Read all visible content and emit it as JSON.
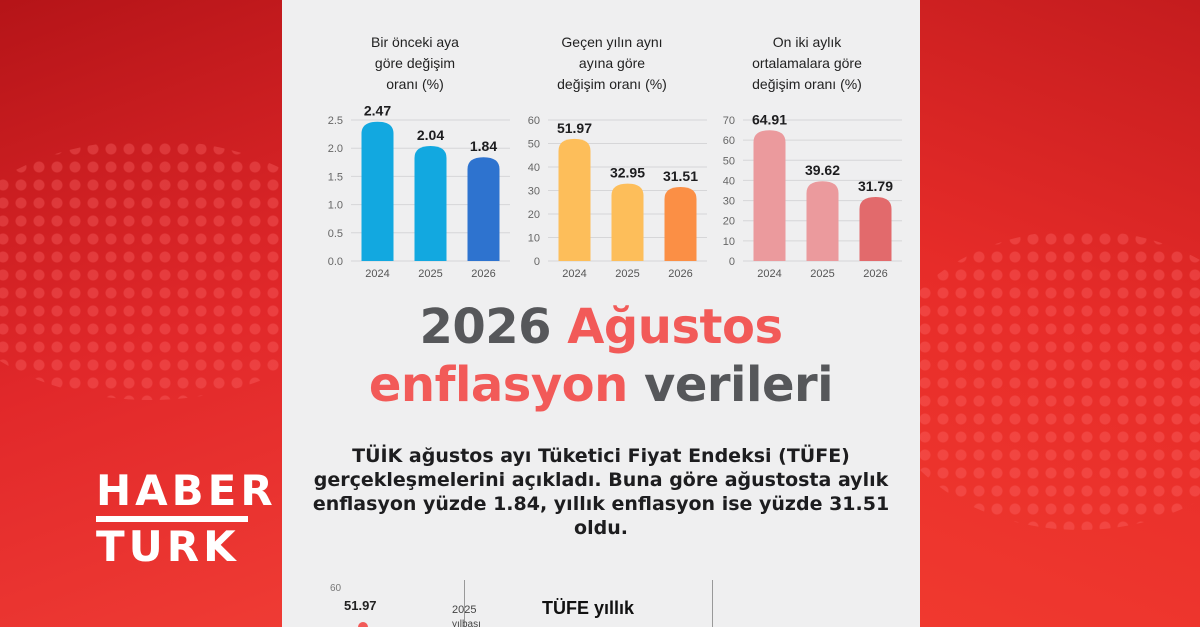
{
  "brand": {
    "line1": "HABER",
    "line2": "TURK"
  },
  "headline": {
    "part1": "2026",
    "part2": "Ağustos",
    "part3": "enflasyon",
    "part4": "verileri"
  },
  "description": "TÜİK ağustos ayı Tüketici Fiyat Endeksi (TÜFE) gerçekleşmelerini açıkladı. Buna göre ağustosta aylık enflasyon yüzde 1.84, yıllık enflasyon ise yüzde 31.51 oldu.",
  "bottom_chart": {
    "tick": "60",
    "value": "51.97",
    "year_label": "2025",
    "sub_label": "yılbaşı",
    "title": "TÜFE yıllık"
  },
  "colors": {
    "background_red": "#e02a26",
    "panel": "#efeff0",
    "headline_dark": "#56575a",
    "headline_red": "#f25a58"
  },
  "chart_data": [
    {
      "type": "bar",
      "title_lines": [
        "Bir önceki aya",
        "göre değişim",
        "oranı (%)"
      ],
      "categories": [
        "2024",
        "2025",
        "2026"
      ],
      "values": [
        2.47,
        2.04,
        1.84
      ],
      "labels": [
        "2.47",
        "2.04",
        "1.84"
      ],
      "yticks": [
        "0.0",
        "0.5",
        "1.0",
        "1.5",
        "2.0",
        "2.5"
      ],
      "ylim": [
        0,
        2.5
      ],
      "colors": [
        "#12a8e0",
        "#12a8e0",
        "#2e73cf"
      ],
      "grid": true
    },
    {
      "type": "bar",
      "title_lines": [
        "Geçen yılın aynı",
        "ayına göre",
        "değişim oranı (%)"
      ],
      "categories": [
        "2024",
        "2025",
        "2026"
      ],
      "values": [
        51.97,
        32.95,
        31.51
      ],
      "labels": [
        "51.97",
        "32.95",
        "31.51"
      ],
      "yticks": [
        "0",
        "10",
        "20",
        "30",
        "40",
        "50",
        "60"
      ],
      "ylim": [
        0,
        60
      ],
      "colors": [
        "#fdbe5a",
        "#fdbe5a",
        "#fb8f45"
      ],
      "grid": true
    },
    {
      "type": "bar",
      "title_lines": [
        "On iki aylık",
        "ortalamalara göre",
        "değişim oranı (%)"
      ],
      "categories": [
        "2024",
        "2025",
        "2026"
      ],
      "values": [
        64.91,
        39.62,
        31.79
      ],
      "labels": [
        "64.91",
        "39.62",
        "31.79"
      ],
      "yticks": [
        "0",
        "10",
        "20",
        "30",
        "40",
        "50",
        "60",
        "70"
      ],
      "ylim": [
        0,
        70
      ],
      "colors": [
        "#eb9a9d",
        "#eb9a9d",
        "#e26a6c"
      ],
      "grid": true
    }
  ]
}
